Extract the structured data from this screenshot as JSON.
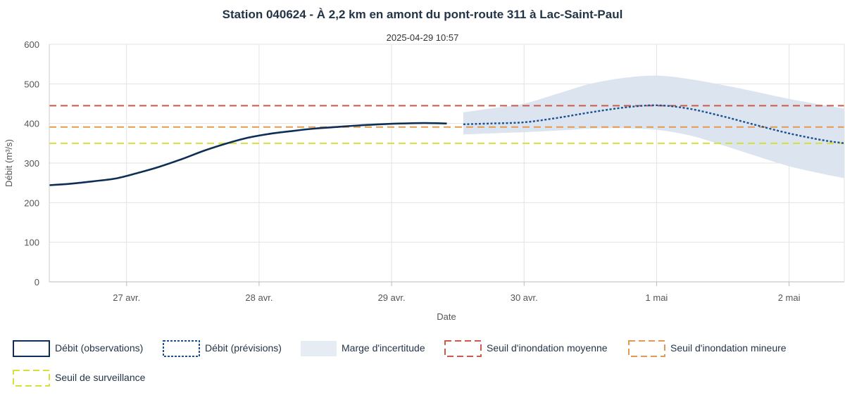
{
  "chart_data": {
    "type": "line",
    "title": "Station 040624 - À 2,2 km en amont du pont-route 311 à Lac-Saint-Paul",
    "subtitle": "2025-04-29 10:57",
    "xlabel": "Date",
    "ylabel": "Débit (m³/s)",
    "ylim": [
      0,
      600
    ],
    "yticks": [
      "0",
      "100",
      "200",
      "300",
      "400",
      "500",
      "600"
    ],
    "yticks_values": [
      0,
      100,
      200,
      300,
      400,
      500,
      600
    ],
    "xlim": [
      "2025-04-26T10:00",
      "2025-05-02T10:00"
    ],
    "xticks": [
      "27 avr.",
      "28 avr.",
      "29 avr.",
      "30 avr.",
      "1 mai",
      "2 mai"
    ],
    "xticks_values": [
      "2025-04-27T00:00",
      "2025-04-28T00:00",
      "2025-04-29T00:00",
      "2025-04-30T00:00",
      "2025-05-01T00:00",
      "2025-05-02T00:00"
    ],
    "grid": true,
    "legend_position": "bottom-left",
    "series": [
      {
        "name": "Débit (observations)",
        "style": "solid",
        "color": "#0d2f55",
        "points": [
          [
            "2025-04-26T10:00",
            244
          ],
          [
            "2025-04-26T14:00",
            248
          ],
          [
            "2025-04-26T18:00",
            254
          ],
          [
            "2025-04-26T22:00",
            261
          ],
          [
            "2025-04-27T02:00",
            275
          ],
          [
            "2025-04-27T06:00",
            291
          ],
          [
            "2025-04-27T10:00",
            310
          ],
          [
            "2025-04-27T14:00",
            331
          ],
          [
            "2025-04-27T18:00",
            349
          ],
          [
            "2025-04-27T22:00",
            364
          ],
          [
            "2025-04-28T02:00",
            374
          ],
          [
            "2025-04-28T06:00",
            381
          ],
          [
            "2025-04-28T10:00",
            387
          ],
          [
            "2025-04-28T14:00",
            391
          ],
          [
            "2025-04-28T18:00",
            395
          ],
          [
            "2025-04-28T22:00",
            398
          ],
          [
            "2025-04-29T02:00",
            400
          ],
          [
            "2025-04-29T06:00",
            401
          ],
          [
            "2025-04-29T10:00",
            400
          ]
        ]
      },
      {
        "name": "Débit (prévisions)",
        "style": "dotted",
        "color": "#1a5190",
        "points": [
          [
            "2025-04-29T13:00",
            398
          ],
          [
            "2025-04-29T18:00",
            400
          ],
          [
            "2025-04-30T00:00",
            403
          ],
          [
            "2025-04-30T06:00",
            414
          ],
          [
            "2025-04-30T12:00",
            428
          ],
          [
            "2025-04-30T18:00",
            440
          ],
          [
            "2025-05-01T00:00",
            446
          ],
          [
            "2025-05-01T06:00",
            437
          ],
          [
            "2025-05-01T12:00",
            418
          ],
          [
            "2025-05-01T18:00",
            396
          ],
          [
            "2025-05-02T00:00",
            375
          ],
          [
            "2025-05-02T06:00",
            358
          ],
          [
            "2025-05-02T10:00",
            350
          ]
        ]
      }
    ],
    "band": {
      "name": "Marge d'incertitude",
      "color": "#dbe4ef",
      "points": [
        [
          "2025-04-29T13:00",
          372,
          428
        ],
        [
          "2025-04-29T18:00",
          375,
          438
        ],
        [
          "2025-04-30T00:00",
          378,
          450
        ],
        [
          "2025-04-30T06:00",
          382,
          475
        ],
        [
          "2025-04-30T12:00",
          387,
          500
        ],
        [
          "2025-04-30T18:00",
          388,
          515
        ],
        [
          "2025-05-01T00:00",
          384,
          521
        ],
        [
          "2025-05-01T06:00",
          370,
          512
        ],
        [
          "2025-05-01T12:00",
          345,
          497
        ],
        [
          "2025-05-01T18:00",
          318,
          480
        ],
        [
          "2025-05-02T00:00",
          292,
          462
        ],
        [
          "2025-05-02T06:00",
          273,
          447
        ],
        [
          "2025-05-02T10:00",
          262,
          438
        ]
      ]
    },
    "thresholds": [
      {
        "name": "Seuil d'inondation moyenne",
        "value": 445,
        "color": "#cc5a4a"
      },
      {
        "name": "Seuil d'inondation mineure",
        "value": 391,
        "color": "#e29a52"
      },
      {
        "name": "Seuil de surveillance",
        "value": 350,
        "color": "#d7e03a"
      }
    ]
  }
}
